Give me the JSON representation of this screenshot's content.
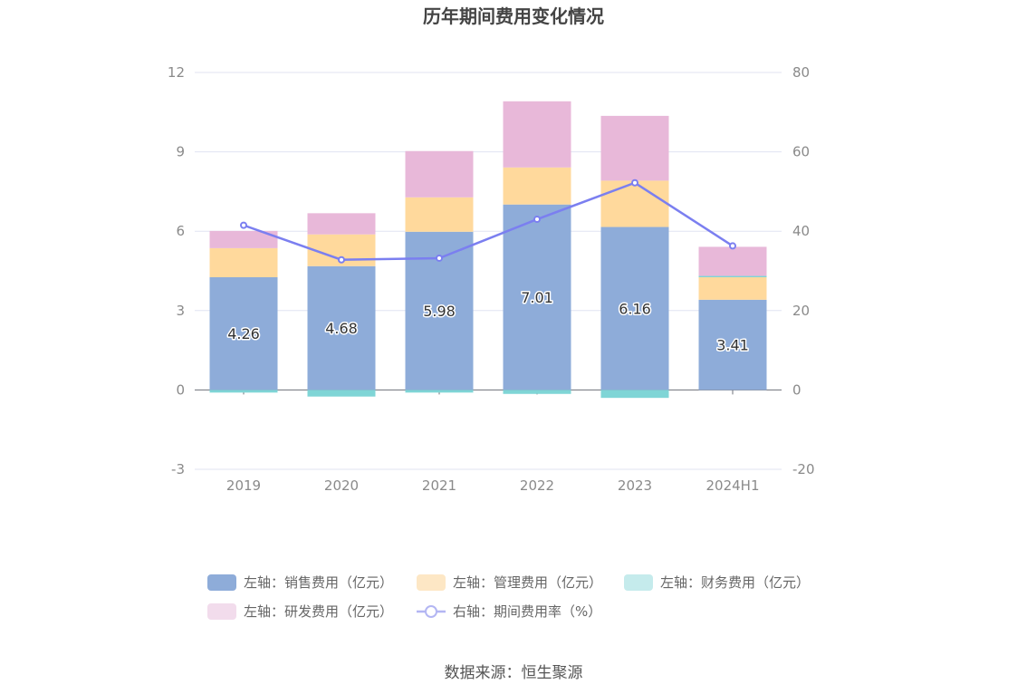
{
  "chart_data": {
    "type": "bar",
    "title": "历年期间费用变化情况",
    "categories": [
      "2019",
      "2020",
      "2021",
      "2022",
      "2023",
      "2024H1"
    ],
    "left_axis": {
      "ylim": [
        -3,
        12
      ],
      "ticks": [
        "12",
        "9",
        "6",
        "3",
        "0",
        "-3"
      ]
    },
    "right_axis": {
      "ylim": [
        -20,
        80
      ],
      "ticks": [
        "80",
        "60",
        "40",
        "20",
        "0",
        "-20"
      ]
    },
    "stacked": true,
    "grid": true,
    "legend_position": "bottom",
    "series": [
      {
        "name": "左轴：销售费用（亿元）",
        "axis": "left",
        "color": "#8eacd9",
        "values": [
          4.26,
          4.68,
          5.98,
          7.01,
          6.16,
          3.41
        ],
        "labels": [
          "4.26",
          "4.68",
          "5.98",
          "7.01",
          "6.16",
          "3.41"
        ]
      },
      {
        "name": "左轴：管理费用（亿元）",
        "axis": "left",
        "color": "#ffd99c",
        "values": [
          1.1,
          1.2,
          1.3,
          1.4,
          1.75,
          0.85
        ]
      },
      {
        "name": "左轴：财务费用（亿元）",
        "axis": "left",
        "color": "#7fd5d6",
        "values": [
          -0.1,
          -0.25,
          -0.1,
          -0.15,
          -0.3,
          0.05
        ]
      },
      {
        "name": "左轴：研发费用（亿元）",
        "axis": "left",
        "color": "#e8b8d9",
        "values": [
          0.65,
          0.8,
          1.75,
          2.5,
          2.45,
          1.1
        ]
      },
      {
        "name": "右轴：期间费用率（%）",
        "axis": "right",
        "type": "line",
        "color": "#7b7ff0",
        "values": [
          41.5,
          32.8,
          33.2,
          43.0,
          52.2,
          36.3
        ]
      }
    ]
  },
  "source": "数据来源：恒生聚源"
}
